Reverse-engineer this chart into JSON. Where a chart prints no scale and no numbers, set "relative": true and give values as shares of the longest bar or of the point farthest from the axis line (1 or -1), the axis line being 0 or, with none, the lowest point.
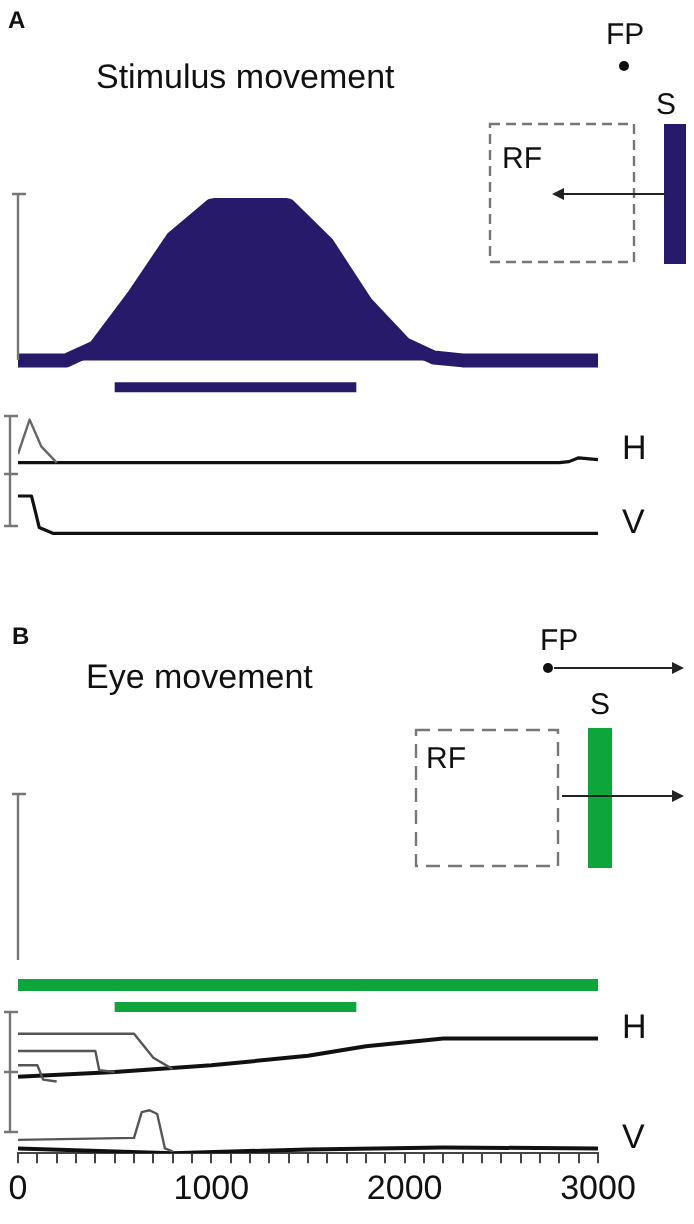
{
  "chart_data": {
    "type": "line",
    "title": [
      "Stimulus movement",
      "Eye movement"
    ],
    "annotations": [
      "A",
      "FP",
      "S",
      "RF",
      "B",
      "FP",
      "S",
      "RF"
    ],
    "relative": true,
    "xlim": [
      0,
      3000
    ],
    "tick_labels": "x",
    "xticks": [
      0,
      {
        "value": 100,
        "label": null
      },
      {
        "value": 200,
        "label": null
      },
      {
        "value": 300,
        "label": null
      },
      {
        "value": 400,
        "label": null
      },
      {
        "value": 500,
        "label": null
      },
      {
        "value": 600,
        "label": null
      },
      {
        "value": 700,
        "label": null
      },
      {
        "value": 800,
        "label": null
      },
      {
        "value": 900,
        "label": null
      },
      1000,
      {
        "value": 1100,
        "label": null
      },
      {
        "value": 1200,
        "label": null
      },
      {
        "value": 1300,
        "label": null
      },
      {
        "value": 1400,
        "label": null
      },
      {
        "value": 1500,
        "label": null
      },
      {
        "value": 1600,
        "label": null
      },
      {
        "value": 1700,
        "label": null
      },
      {
        "value": 1800,
        "label": null
      },
      {
        "value": 1900,
        "label": null
      },
      2000,
      {
        "value": 2100,
        "label": null
      },
      {
        "value": 2200,
        "label": null
      },
      {
        "value": 2300,
        "label": null
      },
      {
        "value": 2400,
        "label": null
      },
      {
        "value": 2500,
        "label": null
      },
      {
        "value": 2600,
        "label": null
      },
      {
        "value": 2700,
        "label": null
      },
      {
        "value": 2800,
        "label": null
      },
      {
        "value": 2900,
        "label": null
      },
      3000
    ],
    "series": [
      {
        "type": "area",
        "color": "#271a6b",
        "x": [
          0,
          250,
          400,
          600,
          800,
          1000,
          1220,
          1400,
          1600,
          1800,
          2000,
          2150,
          2300,
          3000
        ],
        "values": [
          0.83,
          0.83,
          0.844,
          0.898,
          0.958,
          0.992,
          1,
          0.992,
          0.952,
          0.89,
          0.847,
          0.833,
          0.83,
          0.83
        ]
      },
      {
        "color": "#271a6b",
        "x": [
          500,
          1750
        ],
        "values": [
          0.802,
          0.802
        ]
      },
      {
        "name": "H",
        "color": "#111111",
        "x": [
          0,
          2800,
          2850,
          2900,
          3000
        ],
        "values": [
          0.723,
          0.723,
          0.724,
          0.728,
          0.726
        ]
      },
      {
        "color": "#666666",
        "x": [
          0,
          60,
          120,
          200
        ],
        "values": [
          0.732,
          0.768,
          0.74,
          0.723
        ]
      },
      {
        "name": "V",
        "color": "#111111",
        "x": [
          0,
          70,
          110,
          180,
          3000
        ],
        "values": [
          0.688,
          0.688,
          0.655,
          0.649,
          0.649
        ]
      },
      {
        "color": "#0ea53d",
        "x": [
          0,
          3000
        ],
        "values": [
          0.176,
          0.176
        ]
      },
      {
        "color": "#0ea53d",
        "x": [
          500,
          1750
        ],
        "values": [
          0.153,
          0.153
        ]
      },
      {
        "name": "H",
        "color": "#111111",
        "x": [
          0,
          500,
          1000,
          1500,
          1800,
          2200,
          3000
        ],
        "values": [
          0.08,
          0.085,
          0.092,
          0.102,
          0.112,
          0.12,
          0.12
        ]
      },
      {
        "color": "#555555",
        "x": [
          0,
          600,
          700,
          800
        ],
        "values": [
          0.125,
          0.125,
          0.1,
          0.088
        ]
      },
      {
        "color": "#555555",
        "x": [
          0,
          400,
          420,
          500
        ],
        "values": [
          0.107,
          0.107,
          0.087,
          0.085
        ]
      },
      {
        "color": "#555555",
        "x": [
          0,
          100,
          130,
          200
        ],
        "values": [
          0.092,
          0.092,
          0.077,
          0.075
        ]
      },
      {
        "name": "V",
        "color": "#111111",
        "x": [
          0,
          800,
          1500,
          2200,
          3000
        ],
        "values": [
          0.005,
          0,
          0.004,
          0.006,
          0.005
        ]
      },
      {
        "color": "#555555",
        "x": [
          0,
          600,
          640,
          680,
          720,
          760,
          800
        ],
        "values": [
          0.014,
          0.016,
          0.043,
          0.045,
          0.041,
          0.005,
          0.002
        ]
      }
    ]
  }
}
